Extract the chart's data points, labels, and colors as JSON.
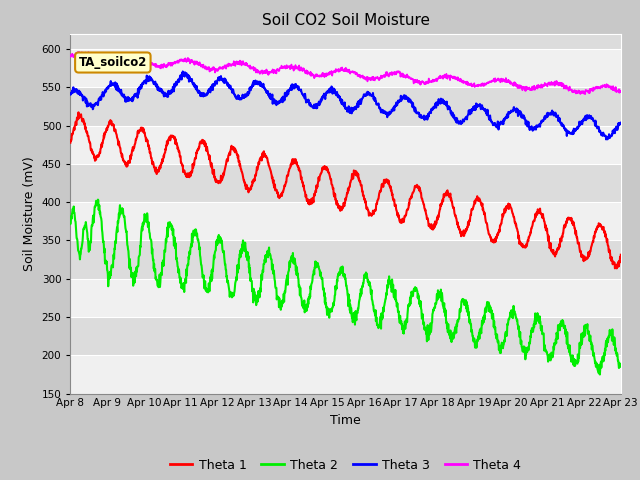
{
  "title": "Soil CO2 Soil Moisture",
  "xlabel": "Time",
  "ylabel": "Soil Moisture (mV)",
  "ylim": [
    150,
    620
  ],
  "yticks": [
    150,
    200,
    250,
    300,
    350,
    400,
    450,
    500,
    550,
    600
  ],
  "x_labels": [
    "Apr 8",
    "Apr 9",
    "Apr 10",
    "Apr 11",
    "Apr 12",
    "Apr 13",
    "Apr 14",
    "Apr 15",
    "Apr 16",
    "Apr 17",
    "Apr 18",
    "Apr 19",
    "Apr 20",
    "Apr 21",
    "Apr 22",
    "Apr 23"
  ],
  "annotation": "TA_soilco2",
  "legend_entries": [
    "Theta 1",
    "Theta 2",
    "Theta 3",
    "Theta 4"
  ],
  "colors": {
    "theta1": "#ff0000",
    "theta2": "#00ee00",
    "theta3": "#0000ff",
    "theta4": "#ff00ff",
    "fig_bg": "#c8c8c8",
    "plot_bg_dark": "#dcdcdc",
    "plot_bg_light": "#f0f0f0",
    "annotation_bg": "#ffffcc",
    "annotation_border": "#cc8800"
  }
}
